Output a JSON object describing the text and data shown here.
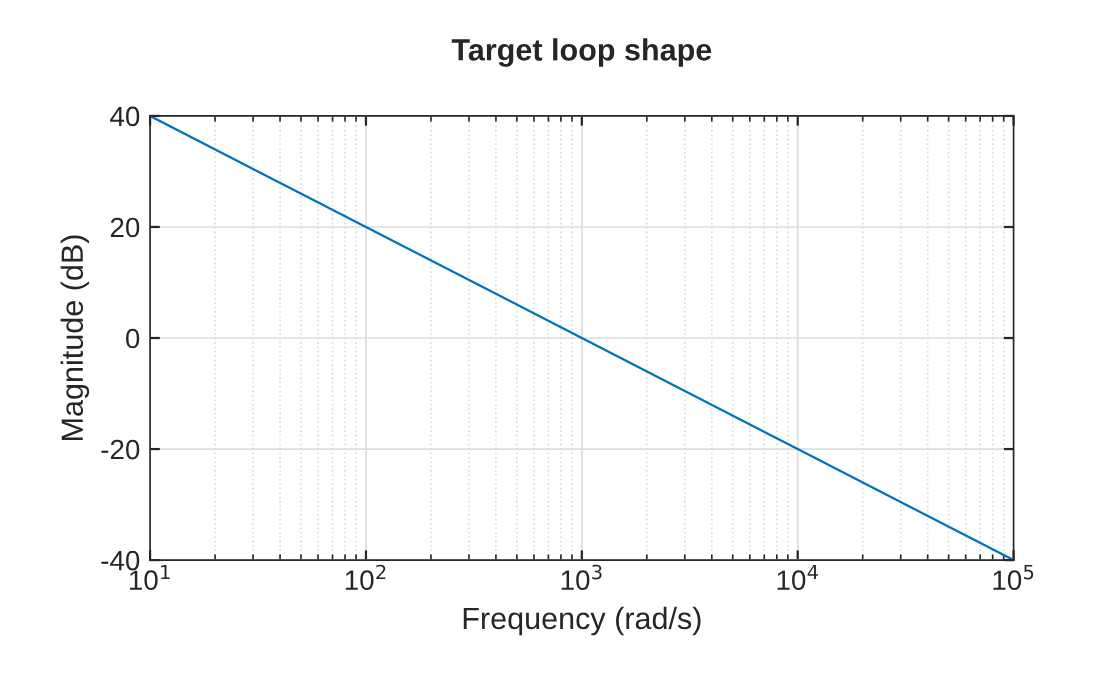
{
  "chart_data": {
    "type": "line",
    "title": "Target loop shape",
    "xlabel": "Frequency (rad/s)",
    "ylabel": "Magnitude (dB)",
    "x": [
      10,
      100,
      1000,
      10000,
      100000
    ],
    "series": [
      {
        "color": "#0072bd",
        "values": [
          40,
          20,
          0,
          -20,
          -40
        ]
      }
    ],
    "log": "x",
    "xlim": [
      10,
      100000
    ],
    "xticks": [
      {
        "value": 10,
        "label": "10$^{1}$"
      },
      {
        "value": 100,
        "label": "10$^{2}$"
      },
      {
        "value": 1000,
        "label": "10$^{3}$"
      },
      {
        "value": 10000,
        "label": "10$^{4}$"
      },
      {
        "value": 100000,
        "label": "10$^{5}$"
      }
    ],
    "ylim": [
      -40,
      40
    ],
    "yticks": [
      -40,
      -20,
      0,
      20,
      40
    ],
    "grid": true,
    "legend": false
  }
}
